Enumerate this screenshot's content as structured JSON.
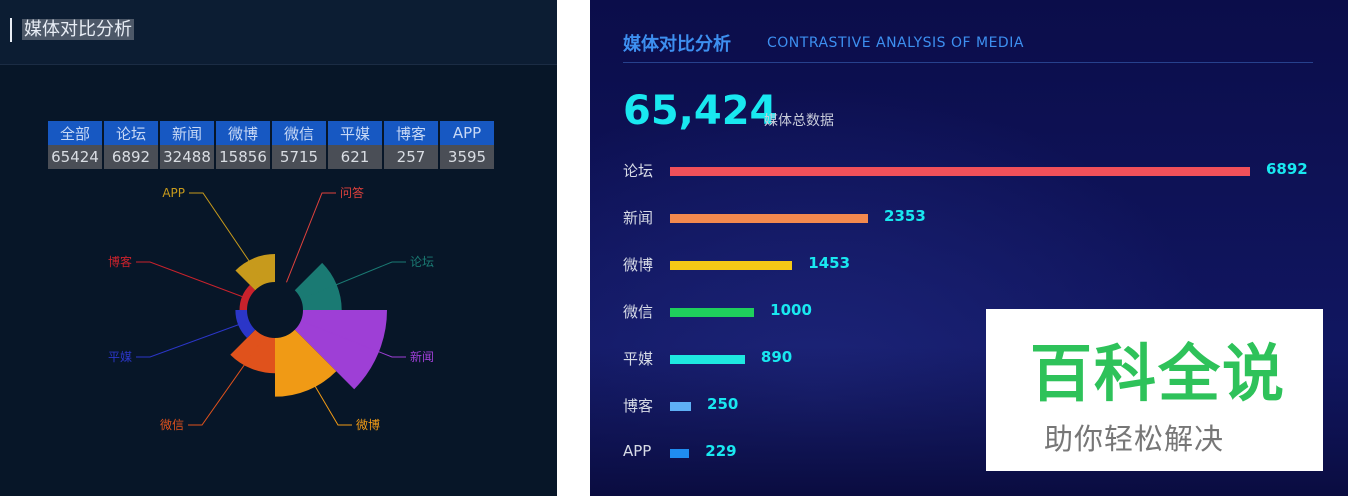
{
  "left_panel": {
    "title": "媒体对比分析",
    "table": {
      "headers": [
        "全部",
        "论坛",
        "新闻",
        "微博",
        "微信",
        "平媒",
        "博客",
        "APP"
      ],
      "values": [
        "65424",
        "6892",
        "32488",
        "15856",
        "5715",
        "621",
        "257",
        "3595"
      ]
    }
  },
  "right_panel": {
    "title": "媒体对比分析",
    "subtitle": "CONTRASTIVE ANALYSIS OF MEDIA",
    "total": "65,424",
    "total_label": "媒体总数据"
  },
  "watermark": {
    "main": "百科全说",
    "sub": "助你轻松解决"
  },
  "chart_data": [
    {
      "type": "pie",
      "variant": "nightingale-rose",
      "categories": [
        "问答",
        "论坛",
        "新闻",
        "微博",
        "微信",
        "平媒",
        "博客",
        "APP"
      ],
      "values": [
        0,
        6892,
        32488,
        15856,
        5715,
        621,
        257,
        3595
      ],
      "colors": [
        "#e0413c",
        "#1a7a73",
        "#9e3fd6",
        "#f09a15",
        "#e0521c",
        "#2b36c8",
        "#c9222c",
        "#c79a1c"
      ]
    },
    {
      "type": "bar",
      "orientation": "horizontal",
      "categories": [
        "论坛",
        "新闻",
        "微博",
        "微信",
        "平媒",
        "博客",
        "APP"
      ],
      "values": [
        6892,
        2353,
        1453,
        1000,
        890,
        250,
        229
      ],
      "value_labels": [
        "6892",
        "2353",
        "1453",
        "1000",
        "890",
        "250",
        "229"
      ],
      "colors": [
        "#f0505a",
        "#f3894e",
        "#f5c816",
        "#1fcf5c",
        "#1ee8e0",
        "#5eb0f5",
        "#1f8cf0"
      ]
    }
  ]
}
